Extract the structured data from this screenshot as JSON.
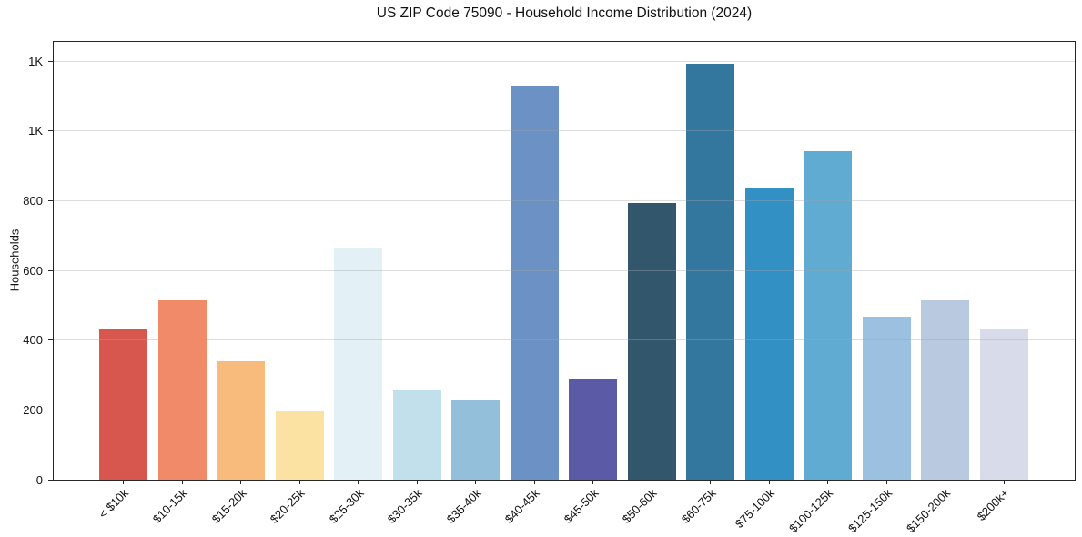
{
  "chart_data": {
    "type": "bar",
    "title": "US ZIP Code 75090 - Household Income Distribution (2024)",
    "xlabel": "",
    "ylabel": "Households",
    "categories": [
      "< $10k",
      "$10-15k",
      "$15-20k",
      "$20-25k",
      "$25-30k",
      "$30-35k",
      "$35-40k",
      "$40-45k",
      "$45-50k",
      "$50-60k",
      "$60-75k",
      "$75-100k",
      "$100-125k",
      "$125-150k",
      "$150-200k",
      "$200k+"
    ],
    "values": [
      433,
      514,
      339,
      197,
      665,
      259,
      227,
      1130,
      289,
      793,
      1192,
      835,
      941,
      466,
      515,
      433
    ],
    "bar_colors": [
      "#d7574f",
      "#f18a69",
      "#f8bb7c",
      "#fbe2a2",
      "#e3f0f6",
      "#c2dfec",
      "#93bfdb",
      "#6c91c4",
      "#5a5aa6",
      "#32566b",
      "#33779e",
      "#3390c4",
      "#5fabd2",
      "#9cc1e0",
      "#b8c9e0",
      "#d8dbe9"
    ],
    "ylim": [
      0,
      1255
    ],
    "yticks": [
      {
        "value": 0,
        "label": "0"
      },
      {
        "value": 200,
        "label": "200"
      },
      {
        "value": 400,
        "label": "400"
      },
      {
        "value": 600,
        "label": "600"
      },
      {
        "value": 800,
        "label": "800"
      },
      {
        "value": 1000,
        "label": "1K"
      },
      {
        "value": 1200,
        "label": "1K"
      }
    ],
    "grid": "horizontal-only",
    "legend": "none",
    "frame": "full-box"
  }
}
